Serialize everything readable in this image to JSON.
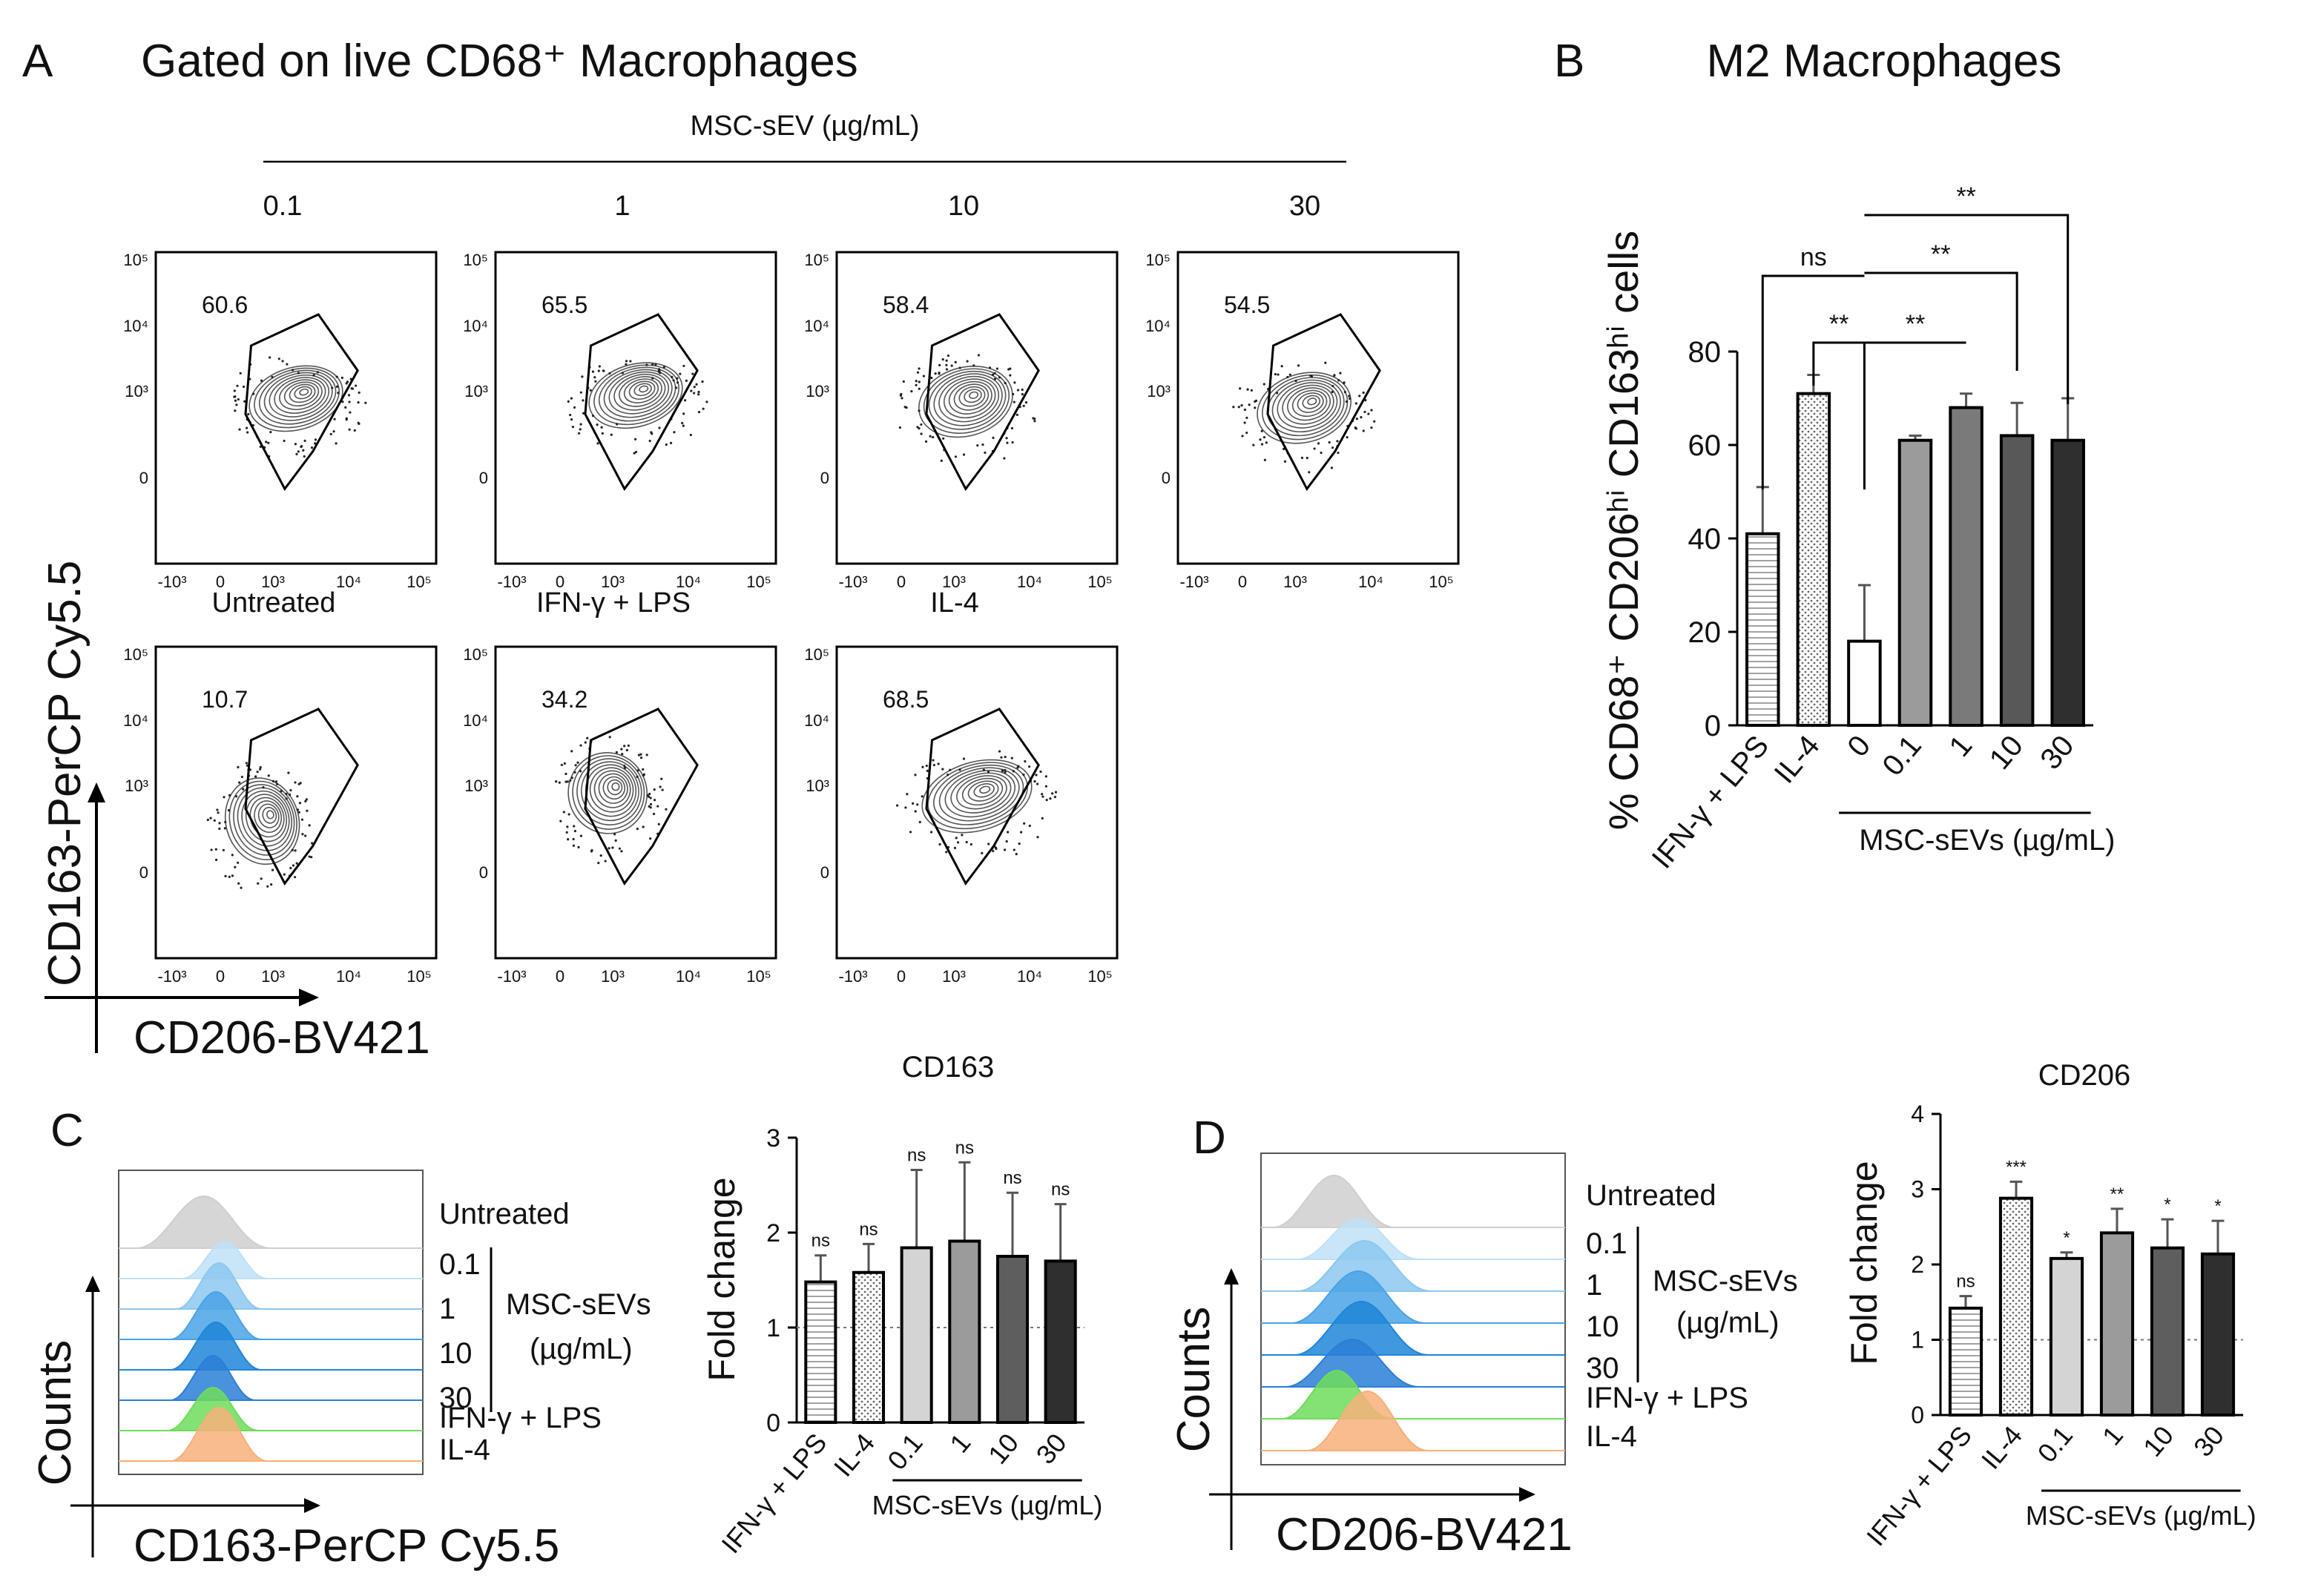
{
  "panel_labels": {
    "a": "A",
    "b": "B",
    "c": "C",
    "d": "D"
  },
  "panel_a": {
    "title": "Gated on live CD68⁺ Macrophages",
    "msc_header": "MSC-sEV (µg/mL)",
    "y_axis": "CD163-PerCP Cy5.5",
    "x_axis": "CD206-BV421",
    "flow_ticks": {
      "y": [
        "10⁵",
        "10⁴",
        "10³",
        "0"
      ],
      "x": [
        "-10³",
        "0",
        "10³",
        "10⁴",
        "10⁵"
      ]
    },
    "plots": [
      {
        "top_label": "0.1",
        "pct": "60.6"
      },
      {
        "top_label": "1",
        "pct": "65.5"
      },
      {
        "top_label": "10",
        "pct": "58.4"
      },
      {
        "top_label": "30",
        "pct": "54.5"
      },
      {
        "top_label": "Untreated",
        "pct": "10.7"
      },
      {
        "top_label": "IFN-γ + LPS",
        "pct": "34.2"
      },
      {
        "top_label": "IL-4",
        "pct": "68.5"
      }
    ]
  },
  "panel_c": {
    "x_axis": "CD163-PerCP Cy5.5",
    "y_axis": "Counts",
    "histogram_colors": [
      "#cfcfcf",
      "#bfe0f7",
      "#8cc8f0",
      "#4aa3e6",
      "#1f86d8",
      "#2a7fd6",
      "#6fdc5a",
      "#f7b07a"
    ],
    "legend": {
      "untreated": "Untreated",
      "doses": [
        "0.1",
        "1",
        "10",
        "30"
      ],
      "msc1": "MSC-sEVs",
      "msc2": "(µg/mL)",
      "ifn": "IFN-γ + LPS",
      "il4": "IL-4"
    }
  },
  "panel_d": {
    "x_axis": "CD206-BV421",
    "y_axis": "Counts",
    "histogram_colors": [
      "#cfcfcf",
      "#bfe0f7",
      "#8cc8f0",
      "#4aa3e6",
      "#1f86d8",
      "#2a7fd6",
      "#6fdc5a",
      "#f7b07a"
    ],
    "legend": {
      "untreated": "Untreated",
      "doses": [
        "0.1",
        "1",
        "10",
        "30"
      ],
      "msc1": "MSC-sEVs",
      "msc2": "(µg/mL)",
      "ifn": "IFN-γ + LPS",
      "il4": "IL-4"
    }
  },
  "chart_data": [
    {
      "id": "B",
      "type": "bar",
      "title": "M2 Macrophages",
      "ylabel": "% CD68⁺ CD206ʰⁱ CD163ʰⁱ cells",
      "xlabel": "MSC-sEVs (µg/mL)",
      "categories": [
        "IFN-γ + LPS",
        "IL-4",
        "0",
        "0.1",
        "1",
        "10",
        "30"
      ],
      "values": [
        41,
        71,
        18,
        61,
        68,
        62,
        61
      ],
      "errors": [
        10,
        4,
        12,
        1,
        3,
        7,
        9
      ],
      "fills": [
        "#ffffff",
        "#ffffff",
        "#ffffff",
        "#9b9b9b",
        "#7a7a7a",
        "#585858",
        "#2f2f2f"
      ],
      "patterns": [
        "hlines",
        "dots",
        "",
        "",
        "",
        "",
        ""
      ],
      "ylim": [
        0,
        80
      ],
      "yticks": [
        0,
        20,
        40,
        60,
        80
      ],
      "comparisons": [
        {
          "a": 0,
          "b": 2,
          "label": "ns"
        },
        {
          "a": 1,
          "b": 2,
          "label": "**"
        },
        {
          "a": 2,
          "b": 4,
          "label": "**"
        },
        {
          "a": 2,
          "b": 5,
          "label": "**"
        },
        {
          "a": 2,
          "b": 6,
          "label": "**"
        }
      ]
    },
    {
      "id": "C",
      "type": "bar",
      "title": "CD163",
      "ylabel": "Fold change",
      "xlabel": "MSC-sEVs (µg/mL)",
      "categories": [
        "IFN-γ + LPS",
        "IL-4",
        "0.1",
        "1",
        "10",
        "30"
      ],
      "values": [
        1.48,
        1.58,
        1.84,
        1.91,
        1.75,
        1.7
      ],
      "errors": [
        0.28,
        0.3,
        0.82,
        0.83,
        0.67,
        0.6
      ],
      "fills": [
        "#ffffff",
        "#ffffff",
        "#d4d4d4",
        "#9b9b9b",
        "#5e5e5e",
        "#2f2f2f"
      ],
      "patterns": [
        "hlines",
        "dots",
        "",
        "",
        "",
        ""
      ],
      "ylim": [
        0,
        3
      ],
      "yticks": [
        0,
        1,
        2,
        3
      ],
      "reference_line": 1,
      "significance": [
        "ns",
        "ns",
        "ns",
        "ns",
        "ns",
        "ns"
      ]
    },
    {
      "id": "D",
      "type": "bar",
      "title": "CD206",
      "ylabel": "Fold change",
      "xlabel": "MSC-sEVs (µg/mL)",
      "categories": [
        "IFN-γ + LPS",
        "IL-4",
        "0.1",
        "1",
        "10",
        "30"
      ],
      "values": [
        1.42,
        2.88,
        2.08,
        2.42,
        2.22,
        2.14
      ],
      "errors": [
        0.16,
        0.22,
        0.08,
        0.32,
        0.38,
        0.44
      ],
      "fills": [
        "#ffffff",
        "#ffffff",
        "#d4d4d4",
        "#9b9b9b",
        "#5e5e5e",
        "#2f2f2f"
      ],
      "patterns": [
        "hlines",
        "dots",
        "",
        "",
        "",
        ""
      ],
      "ylim": [
        0,
        4
      ],
      "yticks": [
        0,
        1,
        2,
        3,
        4
      ],
      "reference_line": 1,
      "significance": [
        "ns",
        "***",
        "*",
        "**",
        "*",
        "*"
      ]
    }
  ]
}
